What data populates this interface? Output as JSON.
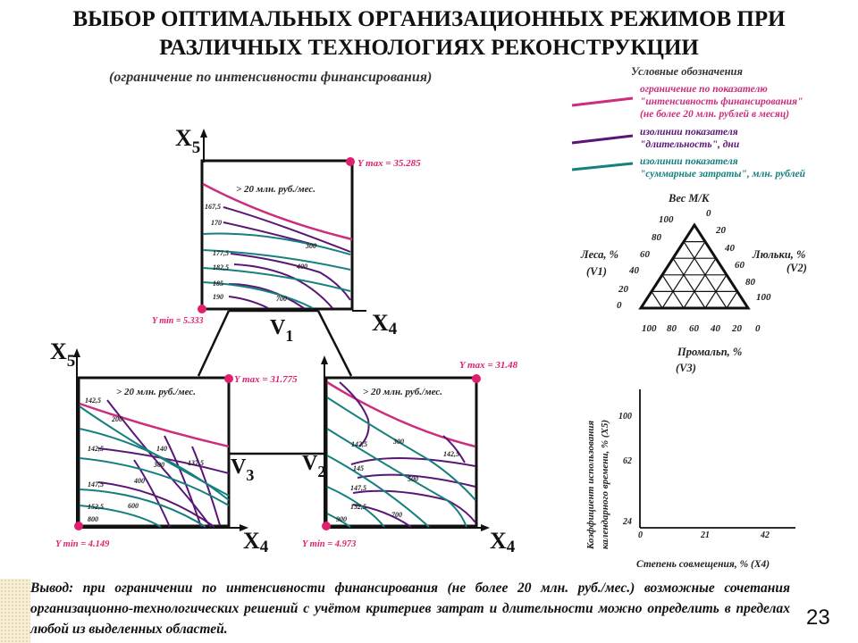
{
  "slide": {
    "title_line1": "ВЫБОР ОПТИМАЛЬНЫХ ОРГАНИЗАЦИОННЫХ РЕЖИМОВ ПРИ",
    "title_line2": "РАЗЛИЧНЫХ ТЕХНОЛОГИЯХ РЕКОНСТРУКЦИИ",
    "subtitle": "(ограничение по интенсивности финансирования)",
    "page_number": "23"
  },
  "legend": {
    "heading": "Условные обозначения",
    "items": [
      {
        "lines": [
          "ограничение по показателю",
          "\"интенсивность финансирования\"",
          "(не более 20 млн. рублей в месяц)"
        ],
        "color": "#cc2d7d"
      },
      {
        "lines": [
          "изолинии показателя",
          "\"длительность\", дни"
        ],
        "color": "#5a1677"
      },
      {
        "lines": [
          "изолинии показателя",
          "\"суммарные затраты\", млн. рублей"
        ],
        "color": "#16807e"
      }
    ]
  },
  "triangle": {
    "top": "Вес М/К",
    "left_line1": "Леса, %",
    "left_line2": "(V1)",
    "right_line1": "Люльки, %",
    "right_line2": "(V2)",
    "bottom_line1": "Промальп, %",
    "bottom_line2": "(V3)",
    "left_ticks": [
      "100",
      "80",
      "60",
      "40",
      "20",
      "0"
    ],
    "right_ticks": [
      "0",
      "20",
      "40",
      "60",
      "80",
      "100"
    ],
    "bottom_ticks": [
      "100",
      "80",
      "60",
      "40",
      "20",
      "0"
    ]
  },
  "axes_chart": {
    "ylabel_line1": "Коэффициент использования",
    "ylabel_line2": "календарного времени, % (X5)",
    "xlabel": "Степень совмещения, % (X4)",
    "y_ticks": [
      "100",
      "62",
      "24"
    ],
    "x_ticks": [
      "0",
      "21",
      "42"
    ]
  },
  "panels": {
    "top": {
      "vertex": "V",
      "vertex_sub": "1",
      "xaxis": "X",
      "xaxis_sub": "4",
      "yaxis": "X",
      "yaxis_sub": "5",
      "ymax": "Y max = 35.285",
      "ymin": "Y min = 5.333",
      "constraint": "> 20 млн. руб./мес.",
      "duration_labels": [
        "167,5",
        "170",
        "177,5",
        "182,5",
        "185",
        "190"
      ],
      "cost_labels": [
        "300",
        "400",
        "700"
      ]
    },
    "left": {
      "vertex": "V",
      "vertex_sub": "3",
      "xaxis": "X",
      "xaxis_sub": "4",
      "yaxis": "X",
      "yaxis_sub": "5",
      "ymax": "Y max = 31.775",
      "ymin": "Y min = 4.149",
      "constraint": "> 20 млн. руб./мес.",
      "duration_labels": [
        "142,5",
        "142,5",
        "147,5",
        "152,5",
        "140",
        "137,5"
      ],
      "cost_labels": [
        "200",
        "300",
        "400",
        "600",
        "800"
      ]
    },
    "right": {
      "vertex": "V",
      "vertex_sub": "2",
      "xaxis": "X",
      "xaxis_sub": "4",
      "ymax": "Y max = 31.48",
      "ymin": "Y min = 4.973",
      "constraint": "> 20 млн. руб./мес.",
      "duration_labels": [
        "142,5",
        "145",
        "147,5",
        "152,5",
        "142,5"
      ],
      "cost_labels": [
        "300",
        "500",
        "700",
        "900"
      ]
    }
  },
  "conclusion": {
    "lead": "Вывод:",
    "text": " при ограничении по интенсивности финансирования (не более 20 млн. руб./мес.) возможные сочетания организационно-технологических решений с учётом критериев затрат и длительности можно определить в пределах любой из выделенных областей."
  },
  "colors": {
    "constraint": "#cc2d7d",
    "duration": "#5a1677",
    "cost": "#16807e",
    "marker": "#e0206e"
  }
}
